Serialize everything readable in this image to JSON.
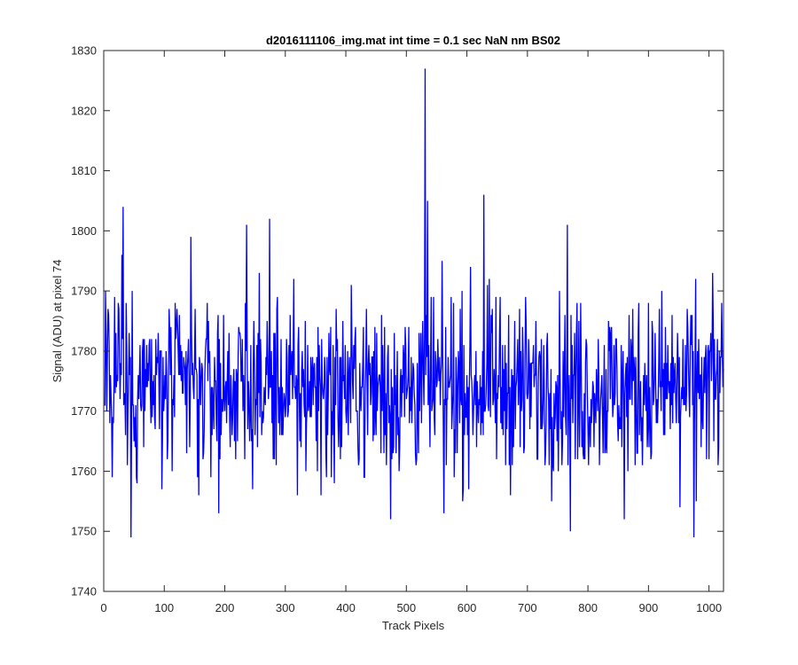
{
  "chart_data": {
    "type": "line",
    "title": "d2016111106_img.mat int time = 0.1 sec  NaN nm BS02",
    "xlabel": "Track Pixels",
    "ylabel": "Signal (ADU) at pixel 74",
    "xlim": [
      0,
      1024
    ],
    "ylim": [
      1740,
      1830
    ],
    "xticks": [
      0,
      100,
      200,
      300,
      400,
      500,
      600,
      700,
      800,
      900,
      1000
    ],
    "yticks": [
      1740,
      1750,
      1760,
      1770,
      1780,
      1790,
      1800,
      1810,
      1820,
      1830
    ],
    "grid": false,
    "legend": "none",
    "series": [
      {
        "color": "#0000ff",
        "x_start": 1,
        "x_step": 1,
        "noise_range": [
          1753,
          1798
        ],
        "peaks": [
          {
            "x": 3,
            "y": 1790
          },
          {
            "x": 14,
            "y": 1759
          },
          {
            "x": 30,
            "y": 1796
          },
          {
            "x": 32,
            "y": 1804
          },
          {
            "x": 45,
            "y": 1749
          },
          {
            "x": 96,
            "y": 1757
          },
          {
            "x": 144,
            "y": 1799
          },
          {
            "x": 157,
            "y": 1756
          },
          {
            "x": 190,
            "y": 1753
          },
          {
            "x": 236,
            "y": 1801
          },
          {
            "x": 274,
            "y": 1802
          },
          {
            "x": 320,
            "y": 1756
          },
          {
            "x": 381,
            "y": 1758
          },
          {
            "x": 474,
            "y": 1752
          },
          {
            "x": 531,
            "y": 1827
          },
          {
            "x": 535,
            "y": 1805
          },
          {
            "x": 562,
            "y": 1753
          },
          {
            "x": 628,
            "y": 1806
          },
          {
            "x": 766,
            "y": 1801
          },
          {
            "x": 771,
            "y": 1750
          },
          {
            "x": 860,
            "y": 1752
          },
          {
            "x": 952,
            "y": 1754
          },
          {
            "x": 975,
            "y": 1749
          },
          {
            "x": 1006,
            "y": 1793
          }
        ]
      }
    ]
  }
}
